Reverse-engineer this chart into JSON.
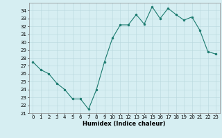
{
  "x": [
    0,
    1,
    2,
    3,
    4,
    5,
    6,
    7,
    8,
    9,
    10,
    11,
    12,
    13,
    14,
    15,
    16,
    17,
    18,
    19,
    20,
    21,
    22,
    23
  ],
  "y": [
    27.5,
    26.5,
    26.0,
    24.8,
    24.0,
    22.8,
    22.8,
    21.5,
    24.0,
    27.5,
    30.5,
    32.2,
    32.2,
    33.5,
    32.3,
    34.5,
    33.0,
    34.3,
    33.5,
    32.8,
    33.2,
    31.5,
    28.8,
    28.5
  ],
  "line_color": "#1a7a6e",
  "marker": "o",
  "marker_size": 2,
  "bg_color": "#d6eef2",
  "grid_color": "#b8d8de",
  "xlabel": "Humidex (Indice chaleur)",
  "ylim": [
    21,
    35
  ],
  "xlim": [
    -0.5,
    23.5
  ],
  "yticks": [
    21,
    22,
    23,
    24,
    25,
    26,
    27,
    28,
    29,
    30,
    31,
    32,
    33,
    34
  ],
  "xticks": [
    0,
    1,
    2,
    3,
    4,
    5,
    6,
    7,
    8,
    9,
    10,
    11,
    12,
    13,
    14,
    15,
    16,
    17,
    18,
    19,
    20,
    21,
    22,
    23
  ],
  "tick_fontsize": 5.0,
  "xlabel_fontsize": 6.0,
  "linewidth": 0.8
}
